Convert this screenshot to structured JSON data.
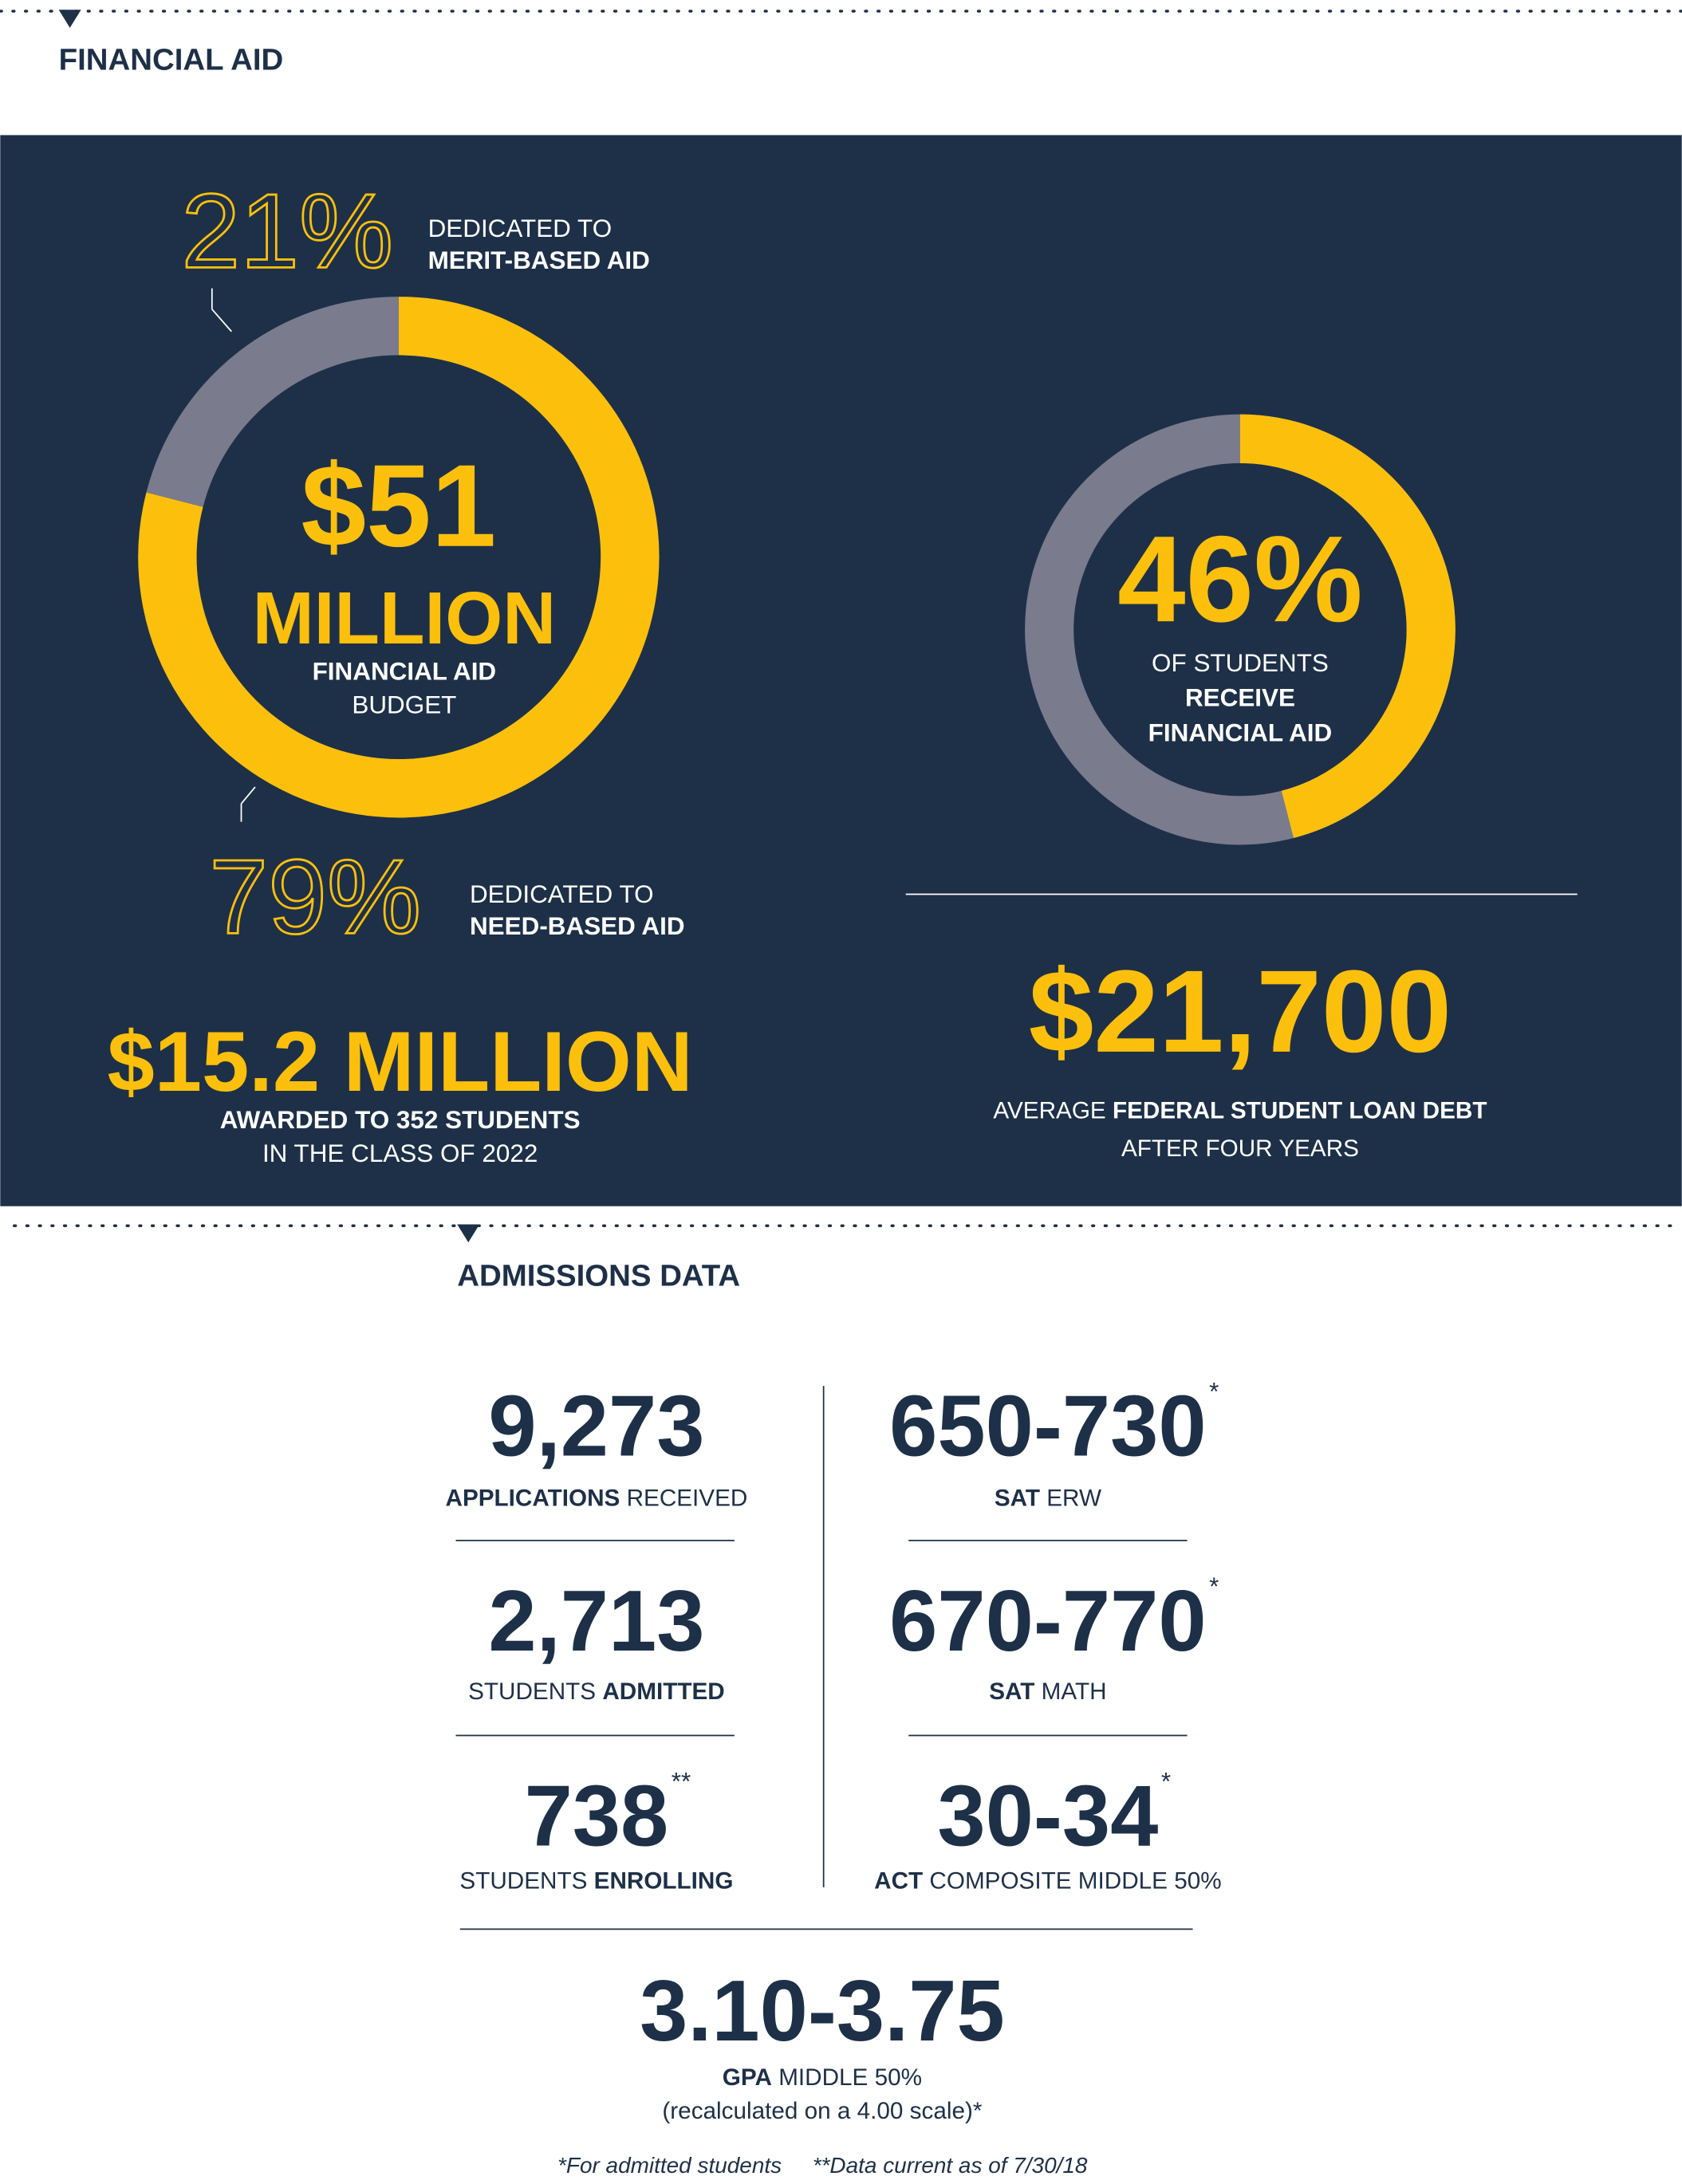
{
  "financial_aid": {
    "title": "FINANCIAL AID",
    "budget": {
      "amount": "$51",
      "unit": "MILLION",
      "label_bold": "FINANCIAL AID",
      "label": "BUDGET",
      "merit": {
        "value": 21,
        "label": "21%",
        "text": "DEDICATED TO",
        "text_bold": "MERIT-BASED AID"
      },
      "need": {
        "value": 79,
        "label": "79%",
        "text": "DEDICATED TO",
        "text_bold": "NEED-BASED AID"
      }
    },
    "awarded": {
      "amount": "$15.2 MILLION",
      "line1": "AWARDED TO 352 STUDENTS",
      "line2": "IN THE CLASS OF 2022"
    },
    "receive": {
      "value": 46,
      "label": "46%",
      "line1": "OF STUDENTS",
      "line2": "RECEIVE",
      "line3": "FINANCIAL AID"
    },
    "debt": {
      "amount": "$21,700",
      "line1": [
        {
          "text": "AVERAGE ",
          "bold": false
        },
        {
          "text": "FEDERAL STUDENT LOAN DEBT",
          "bold": true
        }
      ],
      "line2": "AFTER FOUR YEARS"
    }
  },
  "admissions": {
    "title": "ADMISSIONS DATA",
    "stats": [
      {
        "value": "9,273",
        "label": [
          {
            "text": "APPLICATIONS",
            "bold": true
          },
          {
            "text": " RECEIVED",
            "bold": false
          }
        ]
      },
      {
        "value": "650-730",
        "sup": "*",
        "label": [
          {
            "text": "SAT",
            "bold": true
          },
          {
            "text": " ERW",
            "bold": false
          }
        ]
      },
      {
        "value": "2,713",
        "label": [
          {
            "text": "STUDENTS ",
            "bold": false
          },
          {
            "text": "ADMITTED",
            "bold": true
          }
        ]
      },
      {
        "value": "670-770",
        "sup": "*",
        "label": [
          {
            "text": "SAT",
            "bold": true
          },
          {
            "text": " MATH",
            "bold": false
          }
        ]
      },
      {
        "value": "738",
        "sup": "**",
        "label": [
          {
            "text": "STUDENTS ",
            "bold": false
          },
          {
            "text": "ENROLLING",
            "bold": true
          }
        ]
      },
      {
        "value": "30-34",
        "sup": "*",
        "label": [
          {
            "text": "ACT",
            "bold": true
          },
          {
            "text": " COMPOSITE MIDDLE 50%",
            "bold": false
          }
        ]
      }
    ],
    "gpa": {
      "value": "3.10-3.75",
      "label": [
        {
          "text": "GPA",
          "bold": true
        },
        {
          "text": " MIDDLE 50%",
          "bold": false
        }
      ],
      "note": "(recalculated on a 4.00 scale)*"
    },
    "footnotes": [
      "*For admitted students",
      "**Data current as of 7/30/18"
    ]
  }
}
